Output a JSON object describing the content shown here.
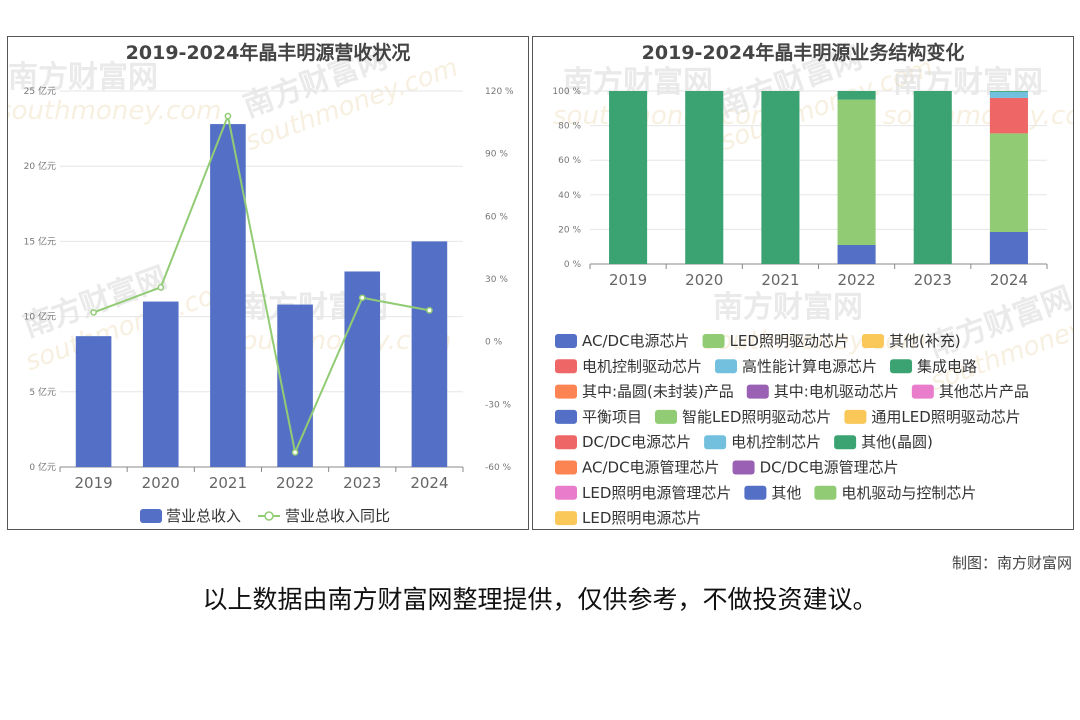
{
  "watermark": {
    "cn": "南方财富网",
    "en": "southmoney.com"
  },
  "credit": "制图：南方财富网",
  "footer_note": "以上数据由南方财富网整理提供，仅供参考，不做投资建议。",
  "chart_data": [
    {
      "type": "bar",
      "title": "2019-2024年晶丰明源营收状况",
      "categories": [
        "2019",
        "2020",
        "2021",
        "2022",
        "2023",
        "2024"
      ],
      "series": [
        {
          "name": "营业总收入",
          "type": "bar",
          "axis": "left",
          "color": "#5470c6",
          "values": [
            8.7,
            11.0,
            22.8,
            10.8,
            13.0,
            15.0
          ]
        },
        {
          "name": "营业总收入同比",
          "type": "line",
          "axis": "right",
          "color": "#91cc75",
          "values": [
            14,
            26,
            108,
            -53,
            21,
            15
          ]
        }
      ],
      "y_left": {
        "min": 0,
        "max": 25,
        "ticks": [
          0,
          5,
          10,
          15,
          20,
          25
        ],
        "tick_labels": [
          "0 亿元",
          "5 亿元",
          "10 亿元",
          "15 亿元",
          "20 亿元",
          "25 亿元"
        ]
      },
      "y_right": {
        "min": -60,
        "max": 120,
        "ticks": [
          -60,
          -30,
          0,
          30,
          60,
          90,
          120
        ],
        "tick_labels": [
          "-60 %",
          "-30 %",
          "0 %",
          "30 %",
          "60 %",
          "90 %",
          "120 %"
        ]
      },
      "grid": true,
      "legend_position": "bottom"
    },
    {
      "type": "bar",
      "stacked": true,
      "title": "2019-2024年晶丰明源业务结构变化",
      "categories": [
        "2019",
        "2020",
        "2021",
        "2022",
        "2023",
        "2024"
      ],
      "y": {
        "min": 0,
        "max": 100,
        "ticks": [
          0,
          20,
          40,
          60,
          80,
          100
        ],
        "tick_labels": [
          "0 %",
          "20 %",
          "40 %",
          "60 %",
          "80 %",
          "100 %"
        ]
      },
      "series": [
        {
          "name": "AC/DC电源芯片",
          "color": "#5470c6",
          "values": [
            0,
            0,
            0,
            11,
            0,
            18.5
          ]
        },
        {
          "name": "LED照明驱动芯片",
          "color": "#91cc75",
          "values": [
            0,
            0,
            0,
            84,
            0,
            57
          ]
        },
        {
          "name": "其他(补充)",
          "color": "#fac858",
          "values": [
            0,
            0,
            0,
            0,
            0,
            0
          ]
        },
        {
          "name": "电机控制驱动芯片",
          "color": "#ee6666",
          "values": [
            0,
            0,
            0,
            0,
            0,
            20.5
          ]
        },
        {
          "name": "高性能计算电源芯片",
          "color": "#73c0de",
          "values": [
            0,
            0,
            0,
            0,
            0,
            3.5
          ]
        },
        {
          "name": "集成电路",
          "color": "#3ba272",
          "values": [
            100,
            100,
            100,
            5,
            100,
            0.5
          ]
        },
        {
          "name": "其中:晶圆(未封装)产品",
          "color": "#fc8452",
          "values": [
            0,
            0,
            0,
            0,
            0,
            0
          ]
        },
        {
          "name": "其中:电机驱动芯片",
          "color": "#9a60b4",
          "values": [
            0,
            0,
            0,
            0,
            0,
            0
          ]
        },
        {
          "name": "其他芯片产品",
          "color": "#ea7ccc",
          "values": [
            0,
            0,
            0,
            0,
            0,
            0
          ]
        },
        {
          "name": "平衡项目",
          "color": "#5470c6",
          "values": [
            0,
            0,
            0,
            0,
            0,
            0
          ]
        },
        {
          "name": "智能LED照明驱动芯片",
          "color": "#91cc75",
          "values": [
            0,
            0,
            0,
            0,
            0,
            0
          ]
        },
        {
          "name": "通用LED照明驱动芯片",
          "color": "#fac858",
          "values": [
            0,
            0,
            0,
            0,
            0,
            0
          ]
        },
        {
          "name": "DC/DC电源芯片",
          "color": "#ee6666",
          "values": [
            0,
            0,
            0,
            0,
            0,
            0
          ]
        },
        {
          "name": "电机控制芯片",
          "color": "#73c0de",
          "values": [
            0,
            0,
            0,
            0,
            0,
            0
          ]
        },
        {
          "name": "其他(晶圆)",
          "color": "#3ba272",
          "values": [
            0,
            0,
            0,
            0,
            0,
            0
          ]
        },
        {
          "name": "AC/DC电源管理芯片",
          "color": "#fc8452",
          "values": [
            0,
            0,
            0,
            0,
            0,
            0
          ]
        },
        {
          "name": "DC/DC电源管理芯片",
          "color": "#9a60b4",
          "values": [
            0,
            0,
            0,
            0,
            0,
            0
          ]
        },
        {
          "name": "LED照明电源管理芯片",
          "color": "#ea7ccc",
          "values": [
            0,
            0,
            0,
            0,
            0,
            0
          ]
        },
        {
          "name": "其他",
          "color": "#5470c6",
          "values": [
            0,
            0,
            0,
            0,
            0,
            0
          ]
        },
        {
          "name": "电机驱动与控制芯片",
          "color": "#91cc75",
          "values": [
            0,
            0,
            0,
            0,
            0,
            0
          ]
        },
        {
          "name": "LED照明电源芯片",
          "color": "#fac858",
          "values": [
            0,
            0,
            0,
            0,
            0,
            0
          ]
        }
      ],
      "legend_rows": [
        [
          0,
          1,
          2
        ],
        [
          3,
          4,
          5
        ],
        [
          6,
          7,
          8
        ],
        [
          9,
          10,
          11
        ],
        [
          12,
          13,
          14
        ],
        [
          15,
          16
        ],
        [
          17,
          18,
          19
        ],
        [
          20
        ]
      ],
      "grid": true,
      "legend_position": "bottom"
    }
  ]
}
